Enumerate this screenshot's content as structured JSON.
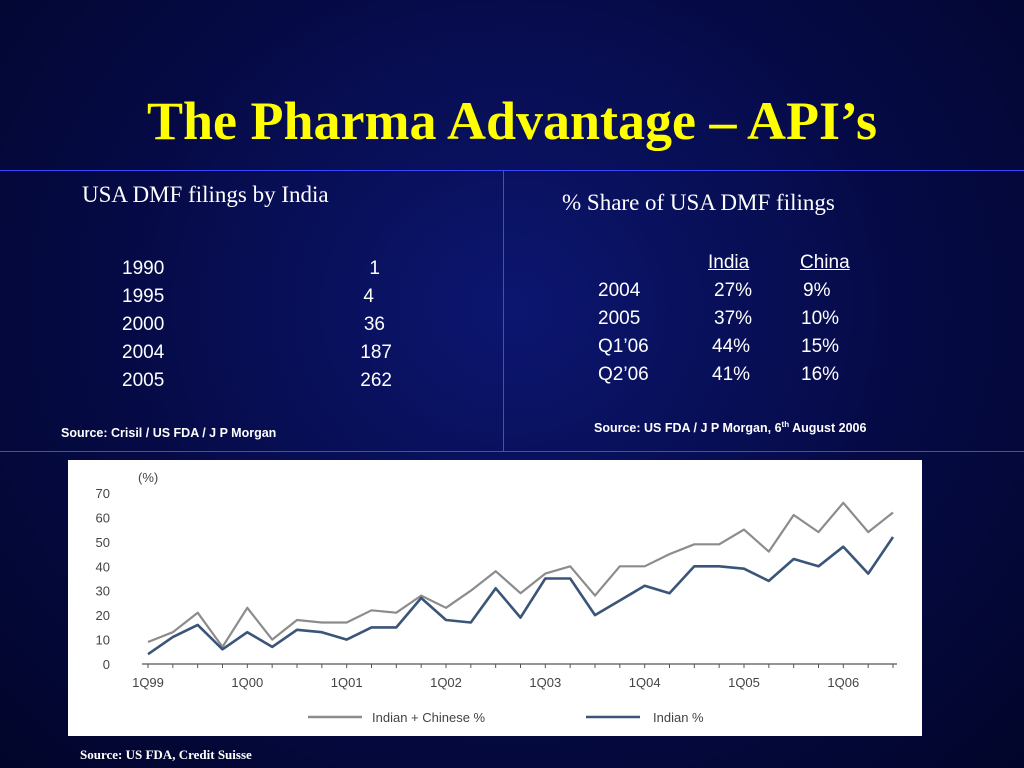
{
  "slide": {
    "title": "The Pharma Advantage – API’s"
  },
  "left_panel": {
    "heading": "USA DMF filings by India",
    "rows": [
      {
        "year": "1990",
        "count": "1"
      },
      {
        "year": "1995",
        "count": "4"
      },
      {
        "year": "2000",
        "count": "36"
      },
      {
        "year": "2004",
        "count": "187"
      },
      {
        "year": "2005",
        "count": "262"
      }
    ],
    "source": "Source: Crisil / US FDA / J P Morgan"
  },
  "right_panel": {
    "heading": "% Share of USA DMF filings",
    "col_india": "India",
    "col_china": "China",
    "rows": [
      {
        "period": "2004",
        "india": "27%",
        "china": "9%"
      },
      {
        "period": "2005",
        "india": "37%",
        "china": "10%"
      },
      {
        "period": "Q1’06",
        "india": "44%",
        "china": "15%"
      },
      {
        "period": "Q2’06",
        "india": "41%",
        "china": "16%"
      }
    ],
    "source_prefix": "Source: US FDA / J P Morgan,   6",
    "source_sup": "th",
    "source_suffix": " August 2006"
  },
  "chart_data": {
    "type": "line",
    "ylabel": "(%)",
    "ylim": [
      0,
      70
    ],
    "yticks": [
      "0",
      "10",
      "20",
      "30",
      "40",
      "50",
      "60",
      "70"
    ],
    "xtick_labels": [
      "1Q99",
      "1Q00",
      "1Q01",
      "1Q02",
      "1Q03",
      "1Q04",
      "1Q05",
      "1Q06"
    ],
    "x": [
      "1Q99",
      "2Q99",
      "3Q99",
      "4Q99",
      "1Q00",
      "2Q00",
      "3Q00",
      "4Q00",
      "1Q01",
      "2Q01",
      "3Q01",
      "4Q01",
      "1Q02",
      "2Q02",
      "3Q02",
      "4Q02",
      "1Q03",
      "2Q03",
      "3Q03",
      "4Q03",
      "1Q04",
      "2Q04",
      "3Q04",
      "4Q04",
      "1Q05",
      "2Q05",
      "3Q05",
      "4Q05",
      "1Q06",
      "2Q06",
      "3Q06"
    ],
    "series": [
      {
        "name": "Indian + Chinese %",
        "color": "#8c8c8c",
        "values": [
          9,
          13,
          21,
          7,
          23,
          10,
          18,
          17,
          17,
          22,
          21,
          28,
          23,
          30,
          38,
          29,
          37,
          40,
          28,
          40,
          40,
          45,
          49,
          49,
          55,
          46,
          61,
          54,
          66,
          54,
          62
        ]
      },
      {
        "name": "Indian %",
        "color": "#3a5577",
        "values": [
          4,
          11,
          16,
          6,
          13,
          7,
          14,
          13,
          10,
          15,
          15,
          27,
          18,
          17,
          31,
          19,
          35,
          35,
          20,
          26,
          32,
          29,
          40,
          40,
          39,
          34,
          43,
          40,
          48,
          37,
          52
        ]
      }
    ],
    "grid": false,
    "legend_position": "bottom"
  },
  "bottom_source": "Source: US FDA, Credit Suisse"
}
